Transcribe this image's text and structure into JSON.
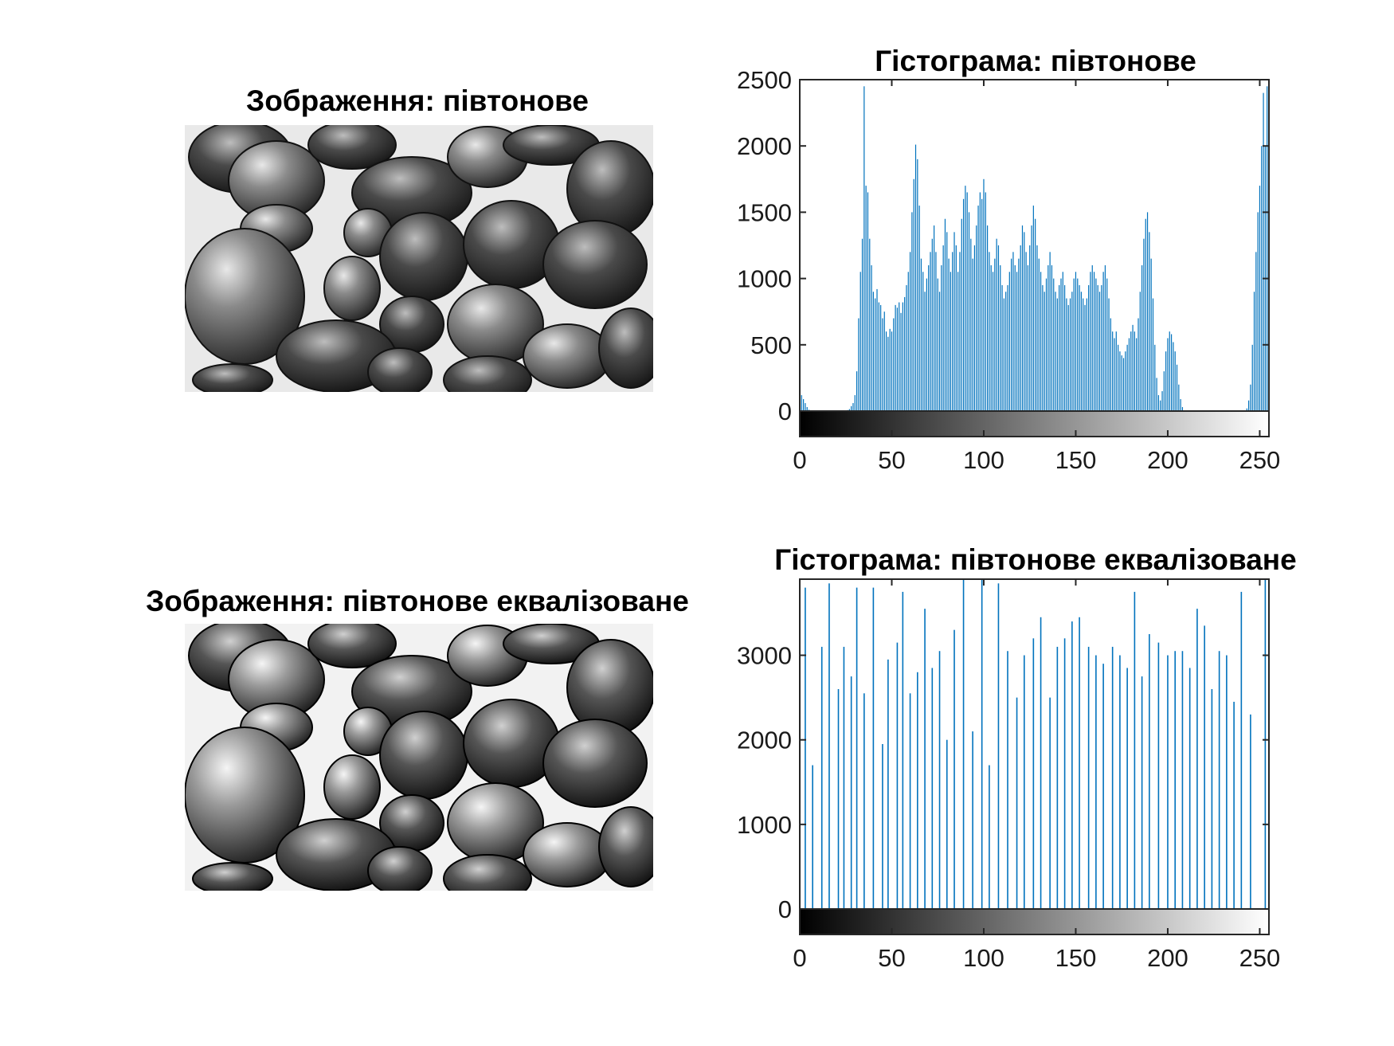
{
  "images": [
    {
      "title": "Зображення: півтонове"
    },
    {
      "title": "Зображення: півтонове еквалізоване"
    }
  ],
  "colors": {
    "bar": "#0072BD",
    "axis": "#262626"
  },
  "chart_data": [
    {
      "type": "bar",
      "title": "Гістограма: півтонове",
      "xlim": [
        0,
        255
      ],
      "ylim": [
        0,
        2500
      ],
      "x_ticks": [
        0,
        50,
        100,
        150,
        200,
        250
      ],
      "y_ticks": [
        0,
        500,
        1000,
        1500,
        2000,
        2500
      ],
      "colorbar": "grayscale 0-255",
      "profile": [
        [
          0,
          140
        ],
        [
          1,
          120
        ],
        [
          2,
          90
        ],
        [
          3,
          60
        ],
        [
          4,
          30
        ],
        [
          5,
          10
        ],
        [
          6,
          0
        ],
        [
          25,
          0
        ],
        [
          27,
          15
        ],
        [
          29,
          60
        ],
        [
          30,
          120
        ],
        [
          31,
          300
        ],
        [
          32,
          700
        ],
        [
          33,
          1050
        ],
        [
          34,
          1300
        ],
        [
          35,
          2450
        ],
        [
          36,
          1700
        ],
        [
          37,
          1650
        ],
        [
          38,
          1300
        ],
        [
          39,
          1100
        ],
        [
          40,
          900
        ],
        [
          41,
          850
        ],
        [
          42,
          920
        ],
        [
          43,
          820
        ],
        [
          44,
          800
        ],
        [
          45,
          700
        ],
        [
          46,
          750
        ],
        [
          47,
          600
        ],
        [
          48,
          560
        ],
        [
          49,
          620
        ],
        [
          50,
          600
        ],
        [
          51,
          700
        ],
        [
          52,
          800
        ],
        [
          53,
          780
        ],
        [
          54,
          820
        ],
        [
          55,
          740
        ],
        [
          56,
          820
        ],
        [
          57,
          860
        ],
        [
          58,
          950
        ],
        [
          59,
          1050
        ],
        [
          60,
          1200
        ],
        [
          61,
          1500
        ],
        [
          62,
          1750
        ],
        [
          63,
          2010
        ],
        [
          64,
          1900
        ],
        [
          65,
          1550
        ],
        [
          66,
          1150
        ],
        [
          67,
          1050
        ],
        [
          68,
          900
        ],
        [
          69,
          1000
        ],
        [
          70,
          1100
        ],
        [
          71,
          1200
        ],
        [
          72,
          1300
        ],
        [
          73,
          1400
        ],
        [
          74,
          1200
        ],
        [
          75,
          1000
        ],
        [
          76,
          900
        ],
        [
          77,
          1100
        ],
        [
          78,
          1250
        ],
        [
          79,
          1450
        ],
        [
          80,
          1350
        ],
        [
          81,
          1150
        ],
        [
          82,
          1050
        ],
        [
          83,
          1200
        ],
        [
          84,
          1350
        ],
        [
          85,
          1250
        ],
        [
          86,
          1050
        ],
        [
          87,
          1200
        ],
        [
          88,
          1450
        ],
        [
          89,
          1600
        ],
        [
          90,
          1700
        ],
        [
          91,
          1650
        ],
        [
          92,
          1500
        ],
        [
          93,
          1300
        ],
        [
          94,
          1150
        ],
        [
          95,
          1250
        ],
        [
          96,
          1400
        ],
        [
          97,
          1550
        ],
        [
          98,
          1650
        ],
        [
          99,
          1600
        ],
        [
          100,
          1750
        ],
        [
          101,
          1650
        ],
        [
          102,
          1400
        ],
        [
          103,
          1200
        ],
        [
          104,
          1100
        ],
        [
          105,
          1050
        ],
        [
          106,
          1150
        ],
        [
          107,
          1300
        ],
        [
          108,
          1250
        ],
        [
          109,
          1100
        ],
        [
          110,
          950
        ],
        [
          111,
          850
        ],
        [
          112,
          900
        ],
        [
          113,
          950
        ],
        [
          114,
          1050
        ],
        [
          115,
          1150
        ],
        [
          116,
          1200
        ],
        [
          117,
          1100
        ],
        [
          118,
          1050
        ],
        [
          119,
          1150
        ],
        [
          120,
          1250
        ],
        [
          121,
          1400
        ],
        [
          122,
          1350
        ],
        [
          123,
          1200
        ],
        [
          124,
          1100
        ],
        [
          125,
          1250
        ],
        [
          126,
          1400
        ],
        [
          127,
          1550
        ],
        [
          128,
          1450
        ],
        [
          129,
          1250
        ],
        [
          130,
          1150
        ],
        [
          131,
          1050
        ],
        [
          132,
          950
        ],
        [
          133,
          900
        ],
        [
          134,
          1000
        ],
        [
          135,
          1100
        ],
        [
          136,
          1200
        ],
        [
          137,
          1100
        ],
        [
          138,
          1000
        ],
        [
          139,
          900
        ],
        [
          140,
          850
        ],
        [
          141,
          950
        ],
        [
          142,
          1000
        ],
        [
          143,
          1050
        ],
        [
          144,
          950
        ],
        [
          145,
          850
        ],
        [
          146,
          800
        ],
        [
          147,
          850
        ],
        [
          148,
          900
        ],
        [
          149,
          1000
        ],
        [
          150,
          1050
        ],
        [
          151,
          1000
        ],
        [
          152,
          950
        ],
        [
          153,
          900
        ],
        [
          154,
          850
        ],
        [
          155,
          800
        ],
        [
          156,
          850
        ],
        [
          157,
          950
        ],
        [
          158,
          1050
        ],
        [
          159,
          1100
        ],
        [
          160,
          1050
        ],
        [
          161,
          1000
        ],
        [
          162,
          950
        ],
        [
          163,
          900
        ],
        [
          164,
          950
        ],
        [
          165,
          1050
        ],
        [
          166,
          1100
        ],
        [
          167,
          1000
        ],
        [
          168,
          850
        ],
        [
          169,
          700
        ],
        [
          170,
          600
        ],
        [
          171,
          550
        ],
        [
          172,
          600
        ],
        [
          173,
          500
        ],
        [
          174,
          450
        ],
        [
          175,
          420
        ],
        [
          176,
          400
        ],
        [
          177,
          450
        ],
        [
          178,
          500
        ],
        [
          179,
          550
        ],
        [
          180,
          600
        ],
        [
          181,
          650
        ],
        [
          182,
          600
        ],
        [
          183,
          550
        ],
        [
          184,
          700
        ],
        [
          185,
          900
        ],
        [
          186,
          1100
        ],
        [
          187,
          1300
        ],
        [
          188,
          1450
        ],
        [
          189,
          1500
        ],
        [
          190,
          1350
        ],
        [
          191,
          1150
        ],
        [
          192,
          850
        ],
        [
          193,
          500
        ],
        [
          194,
          250
        ],
        [
          195,
          120
        ],
        [
          196,
          80
        ],
        [
          197,
          150
        ],
        [
          198,
          300
        ],
        [
          199,
          450
        ],
        [
          200,
          550
        ],
        [
          201,
          600
        ],
        [
          202,
          580
        ],
        [
          203,
          520
        ],
        [
          204,
          450
        ],
        [
          205,
          350
        ],
        [
          206,
          200
        ],
        [
          207,
          90
        ],
        [
          208,
          30
        ],
        [
          209,
          5
        ],
        [
          210,
          0
        ],
        [
          242,
          0
        ],
        [
          243,
          20
        ],
        [
          244,
          80
        ],
        [
          245,
          200
        ],
        [
          246,
          500
        ],
        [
          247,
          900
        ],
        [
          248,
          1200
        ],
        [
          249,
          1500
        ],
        [
          250,
          1700
        ],
        [
          251,
          2000
        ],
        [
          252,
          2400
        ],
        [
          253,
          2000
        ],
        [
          254,
          2450
        ],
        [
          255,
          2300
        ]
      ]
    },
    {
      "type": "bar",
      "title": "Гістограма: півтонове еквалізоване",
      "xlim": [
        0,
        255
      ],
      "ylim": [
        0,
        3900
      ],
      "x_ticks": [
        0,
        50,
        100,
        150,
        200,
        250
      ],
      "y_ticks": [
        0,
        1000,
        2000,
        3000
      ],
      "colorbar": "grayscale 0-255",
      "bins": [
        [
          3,
          3800
        ],
        [
          7,
          1700
        ],
        [
          12,
          3100
        ],
        [
          16,
          3850
        ],
        [
          21,
          2600
        ],
        [
          24,
          3100
        ],
        [
          28,
          2750
        ],
        [
          31,
          3800
        ],
        [
          35,
          2550
        ],
        [
          40,
          3800
        ],
        [
          45,
          1950
        ],
        [
          48,
          2950
        ],
        [
          53,
          3150
        ],
        [
          56,
          3750
        ],
        [
          60,
          2550
        ],
        [
          64,
          2800
        ],
        [
          68,
          3550
        ],
        [
          72,
          2850
        ],
        [
          76,
          3050
        ],
        [
          80,
          2000
        ],
        [
          84,
          3300
        ],
        [
          89,
          3900
        ],
        [
          94,
          2100
        ],
        [
          99,
          3900
        ],
        [
          103,
          1700
        ],
        [
          108,
          3850
        ],
        [
          113,
          3050
        ],
        [
          118,
          2500
        ],
        [
          122,
          3000
        ],
        [
          127,
          3200
        ],
        [
          131,
          3450
        ],
        [
          136,
          2500
        ],
        [
          140,
          3100
        ],
        [
          144,
          3200
        ],
        [
          148,
          3400
        ],
        [
          152,
          3450
        ],
        [
          157,
          3100
        ],
        [
          161,
          3000
        ],
        [
          165,
          2900
        ],
        [
          170,
          3100
        ],
        [
          174,
          3000
        ],
        [
          178,
          2850
        ],
        [
          182,
          3750
        ],
        [
          186,
          2750
        ],
        [
          190,
          3250
        ],
        [
          195,
          3150
        ],
        [
          200,
          3000
        ],
        [
          204,
          3050
        ],
        [
          208,
          3050
        ],
        [
          212,
          2850
        ],
        [
          216,
          3550
        ],
        [
          220,
          3350
        ],
        [
          224,
          2600
        ],
        [
          228,
          3050
        ],
        [
          232,
          3000
        ],
        [
          236,
          2450
        ],
        [
          240,
          3750
        ],
        [
          245,
          2300
        ],
        [
          253,
          3900
        ]
      ]
    }
  ]
}
